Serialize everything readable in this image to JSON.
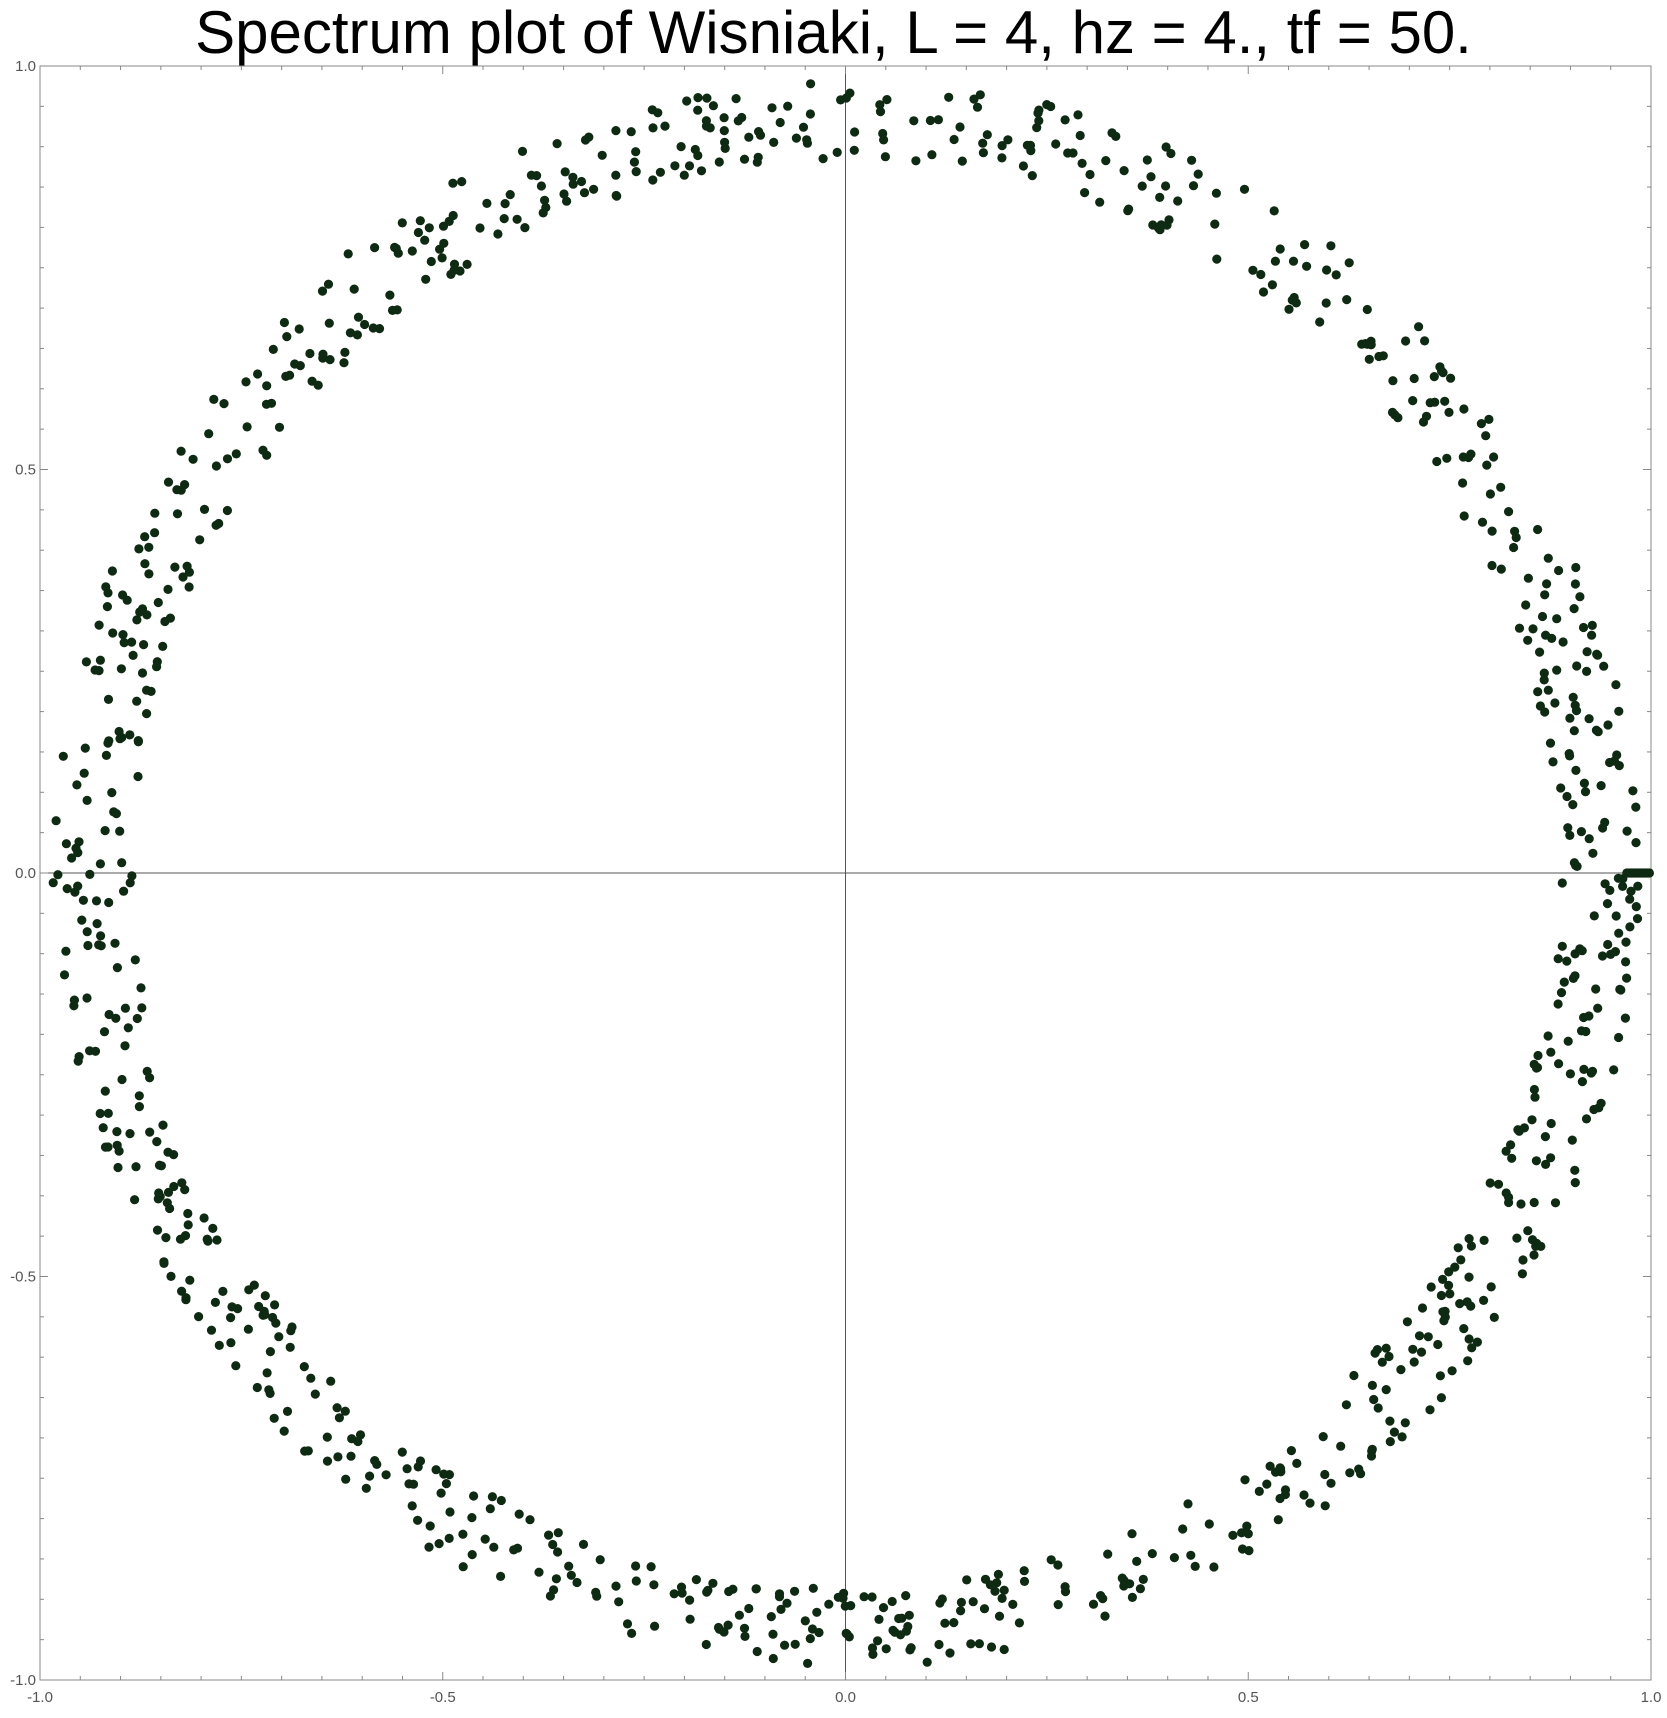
{
  "chart_data": {
    "type": "scatter",
    "title": "Spectrum plot of Wisniaki, L = 4, hz = 4., tf = 50.",
    "xlabel": "",
    "ylabel": "",
    "xlim": [
      -1.0,
      1.0
    ],
    "ylim": [
      -1.0,
      1.0
    ],
    "x_ticks": [
      "-1.0",
      "-0.5",
      "0.0",
      "0.5",
      "1.0"
    ],
    "y_ticks": [
      "1.0",
      "0.5",
      "0.0",
      "-0.5",
      "-1.0"
    ],
    "grid": false,
    "frame": true,
    "axes_through_origin": true,
    "marker_color": "#0f2a12",
    "frame_color": "#888888",
    "axis_color": "#555555",
    "point_distribution": "about 1000 points spread around the unit circle, radius approx 0.88 to 0.99",
    "cluster_near_real_axis": {
      "x_range": [
        0.97,
        0.998
      ],
      "y": 0.0
    }
  }
}
